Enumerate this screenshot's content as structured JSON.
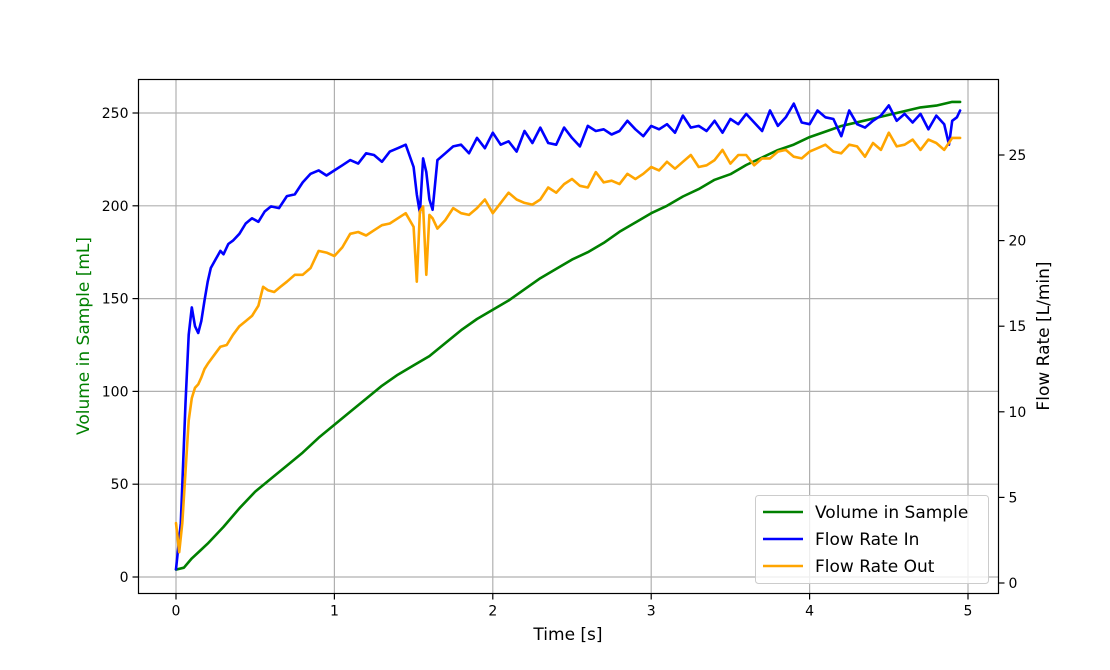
{
  "chart_data": {
    "type": "line",
    "title": "",
    "xlabel": "Time [s]",
    "ylabel": "Volume in Sample [mL]",
    "ylabel_right": "Flow Rate [L/min]",
    "xlim": [
      -0.25,
      5.2
    ],
    "ylim": [
      -8,
      268
    ],
    "ylim_right": [
      -0.4,
      29.6
    ],
    "xticks": [
      "0",
      "1",
      "2",
      "3",
      "4",
      "5"
    ],
    "yticks": [
      "0",
      "50",
      "100",
      "150",
      "200",
      "250"
    ],
    "yticks_right": [
      "0",
      "5",
      "10",
      "15",
      "20",
      "25"
    ],
    "grid": true,
    "legend_position": "lower right",
    "colors": {
      "volume": "#008000",
      "flow_in": "#0000ff",
      "flow_out": "#ffa500",
      "grid": "#b0b0b0",
      "axis": "#000000",
      "ylabel_left": "#008000"
    },
    "series": [
      {
        "name": "Volume in Sample",
        "axis": "left",
        "x": [
          0.0,
          0.05,
          0.1,
          0.15,
          0.2,
          0.3,
          0.4,
          0.5,
          0.6,
          0.7,
          0.8,
          0.9,
          1.0,
          1.1,
          1.2,
          1.3,
          1.4,
          1.5,
          1.6,
          1.7,
          1.8,
          1.9,
          2.0,
          2.1,
          2.2,
          2.3,
          2.4,
          2.5,
          2.6,
          2.7,
          2.8,
          2.9,
          3.0,
          3.1,
          3.2,
          3.3,
          3.4,
          3.5,
          3.6,
          3.7,
          3.8,
          3.9,
          4.0,
          4.1,
          4.2,
          4.3,
          4.4,
          4.5,
          4.6,
          4.7,
          4.8,
          4.9,
          4.95
        ],
        "values": [
          4,
          5,
          10,
          14,
          18,
          27,
          37,
          46,
          53,
          60,
          67,
          75,
          82,
          89,
          96,
          103,
          109,
          114,
          119,
          126,
          133,
          139,
          144,
          149,
          155,
          161,
          166,
          171,
          175,
          180,
          186,
          191,
          196,
          200,
          205,
          209,
          214,
          217,
          222,
          226,
          230,
          233,
          237,
          240,
          243,
          245,
          247,
          249,
          251,
          253,
          254,
          256,
          256
        ]
      },
      {
        "name": "Flow Rate In",
        "axis": "right",
        "x": [
          0.0,
          0.03,
          0.06,
          0.08,
          0.1,
          0.12,
          0.14,
          0.16,
          0.18,
          0.2,
          0.22,
          0.25,
          0.28,
          0.3,
          0.33,
          0.36,
          0.4,
          0.44,
          0.48,
          0.52,
          0.56,
          0.6,
          0.65,
          0.7,
          0.75,
          0.8,
          0.85,
          0.9,
          0.95,
          1.0,
          1.05,
          1.1,
          1.15,
          1.2,
          1.25,
          1.3,
          1.35,
          1.4,
          1.45,
          1.5,
          1.52,
          1.54,
          1.56,
          1.58,
          1.6,
          1.62,
          1.65,
          1.7,
          1.75,
          1.8,
          1.85,
          1.9,
          1.95,
          2.0,
          2.05,
          2.1,
          2.15,
          2.2,
          2.25,
          2.3,
          2.35,
          2.4,
          2.45,
          2.5,
          2.55,
          2.6,
          2.65,
          2.7,
          2.75,
          2.8,
          2.85,
          2.9,
          2.95,
          3.0,
          3.05,
          3.1,
          3.15,
          3.2,
          3.25,
          3.3,
          3.35,
          3.4,
          3.45,
          3.5,
          3.55,
          3.6,
          3.65,
          3.7,
          3.75,
          3.8,
          3.85,
          3.9,
          3.95,
          4.0,
          4.05,
          4.1,
          4.15,
          4.2,
          4.25,
          4.3,
          4.35,
          4.4,
          4.45,
          4.5,
          4.55,
          4.6,
          4.65,
          4.7,
          4.75,
          4.8,
          4.85,
          4.88,
          4.9,
          4.93,
          4.95
        ],
        "values": [
          0.8,
          3.5,
          10.5,
          14.5,
          16.1,
          15.0,
          14.6,
          15.3,
          16.5,
          17.6,
          18.4,
          18.9,
          19.4,
          19.2,
          19.8,
          20.0,
          20.4,
          21.0,
          21.3,
          21.1,
          21.7,
          22.0,
          21.9,
          22.6,
          22.7,
          23.4,
          23.9,
          24.1,
          23.8,
          24.1,
          24.4,
          24.7,
          24.5,
          25.1,
          25.0,
          24.6,
          25.2,
          25.4,
          25.6,
          24.3,
          22.7,
          21.6,
          24.8,
          24.0,
          22.4,
          21.8,
          24.7,
          25.1,
          25.5,
          25.6,
          25.1,
          26.0,
          25.4,
          26.3,
          25.6,
          25.8,
          25.2,
          26.4,
          25.7,
          26.6,
          25.7,
          25.6,
          26.6,
          26.0,
          25.5,
          26.7,
          26.4,
          26.5,
          26.2,
          26.4,
          27.0,
          26.5,
          26.1,
          26.7,
          26.5,
          26.8,
          26.3,
          27.3,
          26.6,
          26.7,
          26.4,
          27.0,
          26.3,
          27.1,
          26.8,
          27.4,
          26.9,
          26.4,
          27.6,
          26.7,
          27.2,
          28.0,
          26.9,
          26.8,
          27.6,
          27.2,
          27.1,
          26.1,
          27.6,
          26.8,
          26.6,
          27.0,
          27.3,
          27.9,
          27.0,
          27.4,
          26.9,
          27.4,
          26.5,
          27.3,
          26.8,
          25.6,
          27.0,
          27.2,
          27.6
        ]
      },
      {
        "name": "Flow Rate Out",
        "axis": "right",
        "x": [
          0.0,
          0.02,
          0.04,
          0.06,
          0.08,
          0.1,
          0.12,
          0.14,
          0.16,
          0.18,
          0.2,
          0.24,
          0.28,
          0.32,
          0.36,
          0.4,
          0.44,
          0.48,
          0.52,
          0.55,
          0.58,
          0.62,
          0.66,
          0.7,
          0.75,
          0.8,
          0.85,
          0.9,
          0.95,
          1.0,
          1.05,
          1.1,
          1.15,
          1.2,
          1.25,
          1.3,
          1.35,
          1.4,
          1.45,
          1.5,
          1.52,
          1.54,
          1.56,
          1.58,
          1.6,
          1.62,
          1.65,
          1.7,
          1.75,
          1.8,
          1.85,
          1.9,
          1.95,
          2.0,
          2.05,
          2.1,
          2.15,
          2.2,
          2.25,
          2.3,
          2.35,
          2.4,
          2.45,
          2.5,
          2.55,
          2.6,
          2.65,
          2.7,
          2.75,
          2.8,
          2.85,
          2.9,
          2.95,
          3.0,
          3.05,
          3.1,
          3.15,
          3.2,
          3.25,
          3.3,
          3.35,
          3.4,
          3.45,
          3.5,
          3.55,
          3.6,
          3.65,
          3.7,
          3.75,
          3.8,
          3.85,
          3.9,
          3.95,
          4.0,
          4.05,
          4.1,
          4.15,
          4.2,
          4.25,
          4.3,
          4.35,
          4.4,
          4.45,
          4.5,
          4.55,
          4.6,
          4.65,
          4.7,
          4.75,
          4.8,
          4.85,
          4.9,
          4.95
        ],
        "values": [
          3.5,
          1.8,
          3.5,
          6.5,
          9.5,
          10.8,
          11.4,
          11.6,
          12.0,
          12.5,
          12.8,
          13.3,
          13.8,
          13.9,
          14.5,
          15.0,
          15.3,
          15.6,
          16.2,
          17.3,
          17.1,
          17.0,
          17.3,
          17.6,
          18.0,
          18.0,
          18.4,
          19.4,
          19.3,
          19.1,
          19.6,
          20.4,
          20.5,
          20.3,
          20.6,
          20.9,
          21.0,
          21.3,
          21.6,
          20.8,
          17.6,
          21.7,
          22.0,
          18.0,
          21.5,
          21.3,
          20.7,
          21.2,
          21.9,
          21.6,
          21.5,
          21.9,
          22.4,
          21.6,
          22.2,
          22.8,
          22.4,
          22.2,
          22.1,
          22.4,
          23.1,
          22.8,
          23.3,
          23.6,
          23.2,
          23.1,
          24.0,
          23.4,
          23.5,
          23.3,
          23.9,
          23.6,
          23.9,
          24.3,
          24.1,
          24.6,
          24.2,
          24.6,
          25.0,
          24.3,
          24.4,
          24.7,
          25.3,
          24.5,
          25.0,
          25.0,
          24.4,
          24.8,
          24.8,
          25.2,
          25.3,
          24.9,
          24.8,
          25.2,
          25.4,
          25.6,
          25.2,
          25.1,
          25.6,
          25.5,
          24.9,
          25.7,
          25.3,
          26.3,
          25.5,
          25.6,
          25.9,
          25.3,
          25.9,
          25.7,
          25.3,
          26.0,
          26.0
        ]
      }
    ]
  },
  "legend": {
    "items": [
      {
        "label": "Volume in Sample",
        "color": "#008000"
      },
      {
        "label": "Flow Rate In",
        "color": "#0000ff"
      },
      {
        "label": "Flow Rate Out",
        "color": "#ffa500"
      }
    ]
  }
}
